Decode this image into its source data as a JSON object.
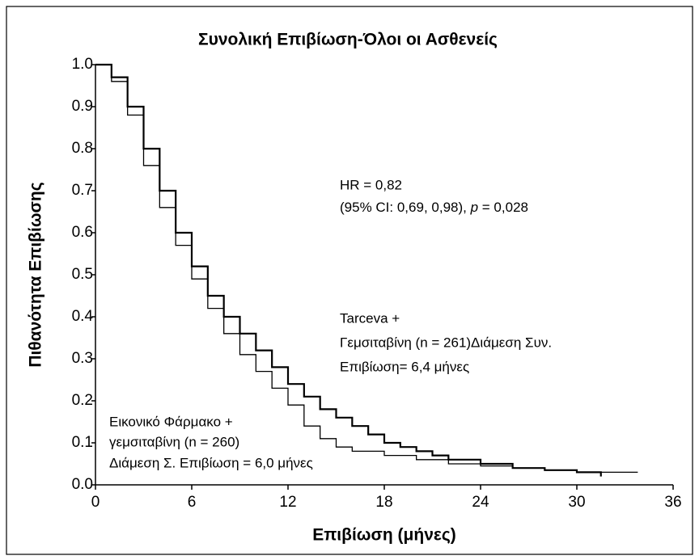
{
  "chart_data": {
    "type": "step",
    "title": "Συνολική Επιβίωση-Όλοι οι Ασθενείς",
    "x_label": "Επιβίωση (μήνες)",
    "y_label": "Πιθανότητα Επιβίωσης",
    "annotations": [
      "HR = 0,82",
      [
        "(95% CI: 0,69, 0,98), ",
        "p",
        " = 0,028"
      ]
    ],
    "xlim": [
      0,
      36
    ],
    "xticks": [
      0,
      6,
      12,
      18,
      24,
      30,
      36
    ],
    "ylim": [
      0,
      1
    ],
    "yticks": [
      {
        "value": 0,
        "label": "0.0"
      },
      0.1,
      0.2,
      0.3,
      0.4,
      0.5,
      0.6,
      0.7,
      0.8,
      0.9,
      {
        "value": 1,
        "label": "1.0"
      }
    ],
    "series": [
      {
        "label": [
          "Tarceva +",
          "Γεμσιταβίνη (n = 261)Διάμεση Συν.",
          "Επιβίωση= 6,4 μήνες"
        ],
        "color": "#000000",
        "x": [
          0,
          1,
          2,
          3,
          4,
          5,
          6,
          7,
          8,
          9,
          10,
          11,
          12,
          13,
          14,
          15,
          16,
          17,
          18,
          19,
          20,
          21,
          22,
          24,
          26,
          28,
          30,
          31.5
        ],
        "values": [
          1.0,
          0.97,
          0.9,
          0.8,
          0.7,
          0.6,
          0.52,
          0.45,
          0.4,
          0.36,
          0.32,
          0.28,
          0.24,
          0.21,
          0.18,
          0.16,
          0.14,
          0.12,
          0.1,
          0.09,
          0.08,
          0.07,
          0.06,
          0.05,
          0.04,
          0.035,
          0.03,
          0.02
        ]
      },
      {
        "label": [
          "Εικονικό Φάρμακο +",
          "γεμσιταβίνη (n = 260)",
          "Διάμεση Σ. Επιβίωση = 6,0 μήνες"
        ],
        "color": "#000000",
        "x": [
          0,
          1,
          2,
          3,
          4,
          5,
          6,
          7,
          8,
          9,
          10,
          11,
          12,
          13,
          14,
          15,
          16,
          18,
          20,
          22,
          24,
          26,
          28,
          30,
          33.8
        ],
        "values": [
          1.0,
          0.96,
          0.88,
          0.76,
          0.66,
          0.57,
          0.49,
          0.42,
          0.36,
          0.31,
          0.27,
          0.23,
          0.19,
          0.14,
          0.11,
          0.09,
          0.08,
          0.07,
          0.06,
          0.05,
          0.045,
          0.04,
          0.035,
          0.03,
          0.03
        ]
      }
    ]
  }
}
